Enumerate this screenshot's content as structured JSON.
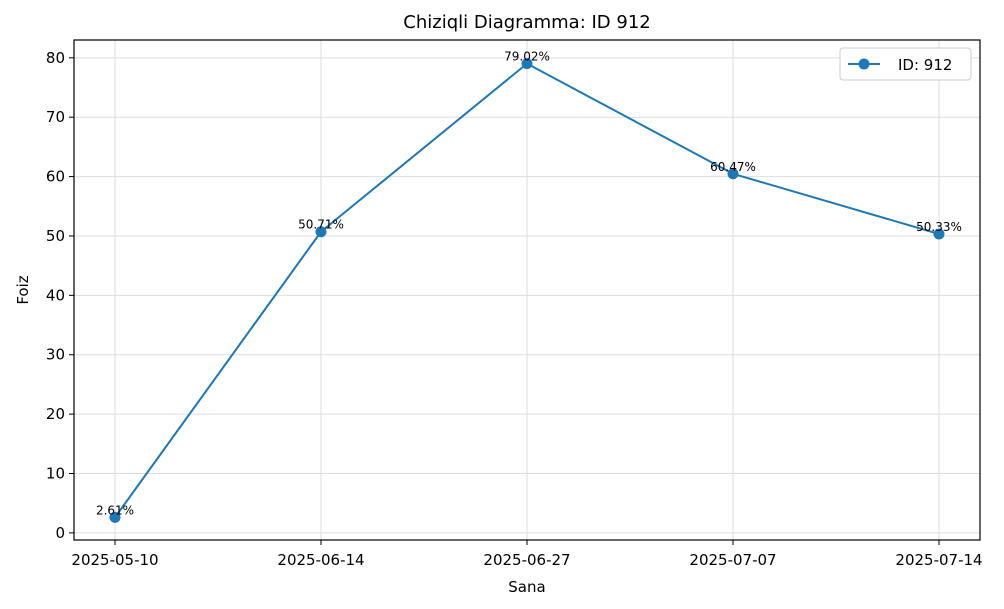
{
  "chart_data": {
    "type": "line",
    "title": "Chiziqli Diagramma: ID 912",
    "xlabel": "Sana",
    "ylabel": "Foiz",
    "categories": [
      "2025-05-10",
      "2025-06-14",
      "2025-06-27",
      "2025-07-07",
      "2025-07-14"
    ],
    "series": [
      {
        "name": "ID: 912",
        "values": [
          2.61,
          50.71,
          79.02,
          60.47,
          50.33
        ],
        "labels": [
          "2.61%",
          "50.71%",
          "79.02%",
          "60.47%",
          "50.33%"
        ],
        "color": "#1f77b4",
        "marker": "circle"
      }
    ],
    "ylim": [
      -1.2,
      83
    ],
    "yticks": [
      0,
      10,
      20,
      30,
      40,
      50,
      60,
      70,
      80
    ],
    "grid": true,
    "legend_position": "top-right"
  }
}
